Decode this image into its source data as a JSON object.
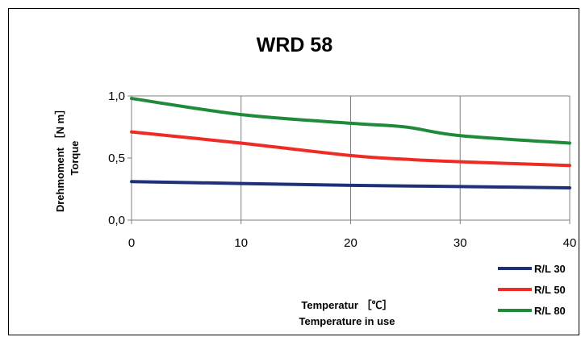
{
  "chart_data": {
    "type": "line",
    "title": "WRD 58",
    "xlabel": [
      "Temperatur ［℃］",
      "Temperature in use"
    ],
    "ylabel": [
      "Drehmoment ［N m］",
      "Torque"
    ],
    "xlim": [
      0,
      40
    ],
    "ylim": [
      0,
      1.0
    ],
    "xticks": [
      0,
      10,
      20,
      30,
      40
    ],
    "xtick_labels": [
      "0",
      "10",
      "20",
      "30",
      "40"
    ],
    "yticks": [
      0,
      0.5,
      1.0
    ],
    "ytick_labels": [
      "0,0",
      "0,5",
      "1,0"
    ],
    "grid": "vertical",
    "legend": "bottom-right",
    "series": [
      {
        "name": "R/L 30",
        "color": "#1f2f7a",
        "x": [
          0,
          10,
          20,
          30,
          40
        ],
        "y": [
          0.31,
          0.295,
          0.28,
          0.27,
          0.26
        ]
      },
      {
        "name": "R/L 50",
        "color": "#ee2b24",
        "x": [
          0,
          10,
          20,
          25,
          30,
          40
        ],
        "y": [
          0.71,
          0.62,
          0.52,
          0.49,
          0.47,
          0.44
        ]
      },
      {
        "name": "R/L 80",
        "color": "#1f8a3a",
        "x": [
          0,
          10,
          20,
          25,
          30,
          40
        ],
        "y": [
          0.98,
          0.85,
          0.78,
          0.75,
          0.68,
          0.62
        ]
      }
    ]
  }
}
